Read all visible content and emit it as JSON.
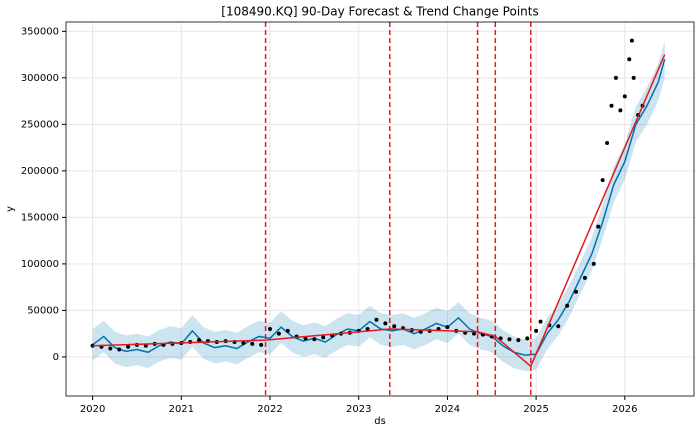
{
  "chart_data": {
    "type": "forecast",
    "title": "[108490.KQ] 90-Day Forecast & Trend Change Points",
    "xlabel": "ds",
    "ylabel": "y",
    "xlim": [
      2019.7,
      2026.78
    ],
    "xticks": [
      2020,
      2021,
      2022,
      2023,
      2024,
      2025,
      2026
    ],
    "ylim": [
      -42000,
      360000
    ],
    "yticks": [
      0,
      50000,
      100000,
      150000,
      200000,
      250000,
      300000,
      350000
    ],
    "grid": true,
    "forecast": {
      "color": "#0072B2",
      "x": [
        2020.0,
        2020.125,
        2020.25,
        2020.375,
        2020.5,
        2020.625,
        2020.75,
        2020.875,
        2021.0,
        2021.125,
        2021.25,
        2021.375,
        2021.5,
        2021.625,
        2021.75,
        2021.875,
        2022.0,
        2022.125,
        2022.25,
        2022.375,
        2022.5,
        2022.625,
        2022.75,
        2022.875,
        2023.0,
        2023.125,
        2023.25,
        2023.375,
        2023.5,
        2023.625,
        2023.75,
        2023.875,
        2024.0,
        2024.125,
        2024.25,
        2024.375,
        2024.5,
        2024.625,
        2024.75,
        2024.875,
        2025.0,
        2025.125,
        2025.25,
        2025.375,
        2025.5,
        2025.625,
        2025.75,
        2025.875,
        2026.0,
        2026.125,
        2026.25,
        2026.375,
        2026.45
      ],
      "values": [
        13000,
        22000,
        10000,
        6000,
        8000,
        5000,
        12000,
        16000,
        14000,
        28000,
        15000,
        10000,
        12000,
        9000,
        16000,
        22000,
        20000,
        32000,
        22000,
        17000,
        20000,
        16000,
        24000,
        30000,
        28000,
        38000,
        30000,
        28000,
        30000,
        25000,
        30000,
        36000,
        32000,
        42000,
        30000,
        25000,
        22000,
        12000,
        5000,
        2000,
        3000,
        25000,
        40000,
        60000,
        85000,
        110000,
        145000,
        185000,
        210000,
        250000,
        270000,
        295000,
        320000
      ],
      "lower": [
        -4000,
        5000,
        -7000,
        -11000,
        -9000,
        -12000,
        -5000,
        -1000,
        -3000,
        11000,
        -2000,
        -7000,
        -5000,
        -8000,
        -1000,
        5000,
        3000,
        15000,
        5000,
        0,
        3000,
        -1000,
        7000,
        13000,
        11000,
        21000,
        13000,
        11000,
        13000,
        8000,
        13000,
        19000,
        15000,
        25000,
        13000,
        8000,
        5000,
        -5000,
        -12000,
        -15000,
        -14000,
        8000,
        23000,
        43000,
        68000,
        92000,
        127000,
        166000,
        191000,
        231000,
        250000,
        275000,
        300000
      ],
      "upper": [
        30000,
        39000,
        27000,
        23000,
        25000,
        22000,
        29000,
        33000,
        31000,
        45000,
        32000,
        27000,
        29000,
        26000,
        33000,
        39000,
        37000,
        49000,
        39000,
        34000,
        37000,
        33000,
        41000,
        47000,
        45000,
        55000,
        47000,
        45000,
        47000,
        42000,
        47000,
        53000,
        49000,
        59000,
        47000,
        42000,
        39000,
        29000,
        22000,
        19000,
        20000,
        42000,
        57000,
        77000,
        102000,
        128000,
        163000,
        204000,
        229000,
        269000,
        290000,
        315000,
        340000
      ]
    },
    "trend": {
      "color": "#e41a1c",
      "x": [
        2020.0,
        2021.95,
        2023.35,
        2024.34,
        2024.54,
        2024.94,
        2026.45
      ],
      "values": [
        12000,
        18000,
        30000,
        27000,
        22000,
        -10000,
        325000
      ]
    },
    "changepoints": [
      2021.95,
      2023.35,
      2024.34,
      2024.54,
      2024.94
    ],
    "observed": {
      "color": "#000000",
      "x": [
        2020.0,
        2020.1,
        2020.2,
        2020.3,
        2020.4,
        2020.5,
        2020.6,
        2020.7,
        2020.8,
        2020.9,
        2021.0,
        2021.1,
        2021.2,
        2021.3,
        2021.4,
        2021.5,
        2021.6,
        2021.7,
        2021.8,
        2021.9,
        2022.0,
        2022.1,
        2022.2,
        2022.3,
        2022.4,
        2022.5,
        2022.6,
        2022.7,
        2022.8,
        2022.9,
        2023.0,
        2023.1,
        2023.2,
        2023.3,
        2023.4,
        2023.5,
        2023.6,
        2023.7,
        2023.8,
        2023.9,
        2024.0,
        2024.1,
        2024.2,
        2024.3,
        2024.4,
        2024.5,
        2024.6,
        2024.7,
        2024.8,
        2024.9,
        2025.0,
        2025.05,
        2025.15,
        2025.25,
        2025.35,
        2025.45,
        2025.55,
        2025.65,
        2025.7,
        2025.75,
        2025.8,
        2025.85,
        2025.9,
        2025.95,
        2026.0,
        2026.05,
        2026.08,
        2026.1,
        2026.15,
        2026.2
      ],
      "values": [
        12000,
        11000,
        9000,
        8000,
        11000,
        13000,
        12000,
        14000,
        13000,
        14000,
        15000,
        16000,
        18000,
        17000,
        16000,
        17000,
        16000,
        15000,
        14000,
        13000,
        30000,
        25000,
        28000,
        22000,
        20000,
        19000,
        21000,
        23000,
        25000,
        26000,
        28000,
        30000,
        40000,
        36000,
        33000,
        31000,
        29000,
        27000,
        28000,
        30000,
        32000,
        28000,
        26000,
        25000,
        24000,
        22000,
        20000,
        19000,
        18000,
        20000,
        28000,
        38000,
        34000,
        33000,
        55000,
        70000,
        85000,
        100000,
        140000,
        190000,
        230000,
        270000,
        300000,
        265000,
        280000,
        320000,
        340000,
        300000,
        260000,
        270000
      ]
    }
  }
}
